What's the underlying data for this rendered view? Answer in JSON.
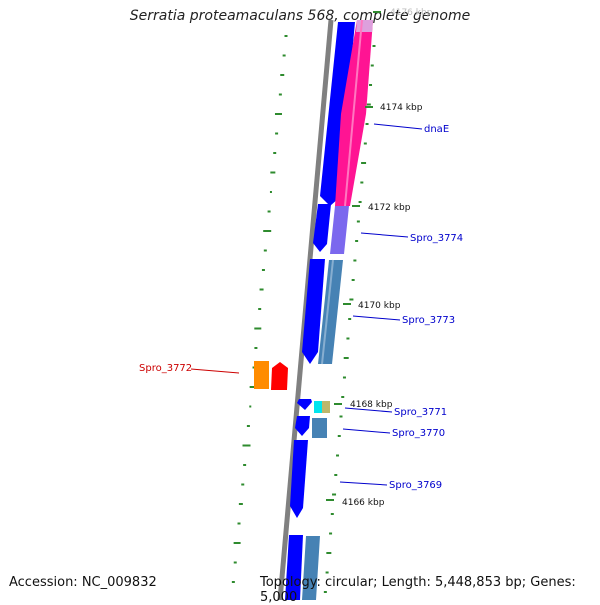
{
  "title": "Serratia proteamaculans 568, complete genome",
  "footer": {
    "accession": "Accession: NC_009832",
    "topology": "Topology: circular; Length: 5,448,853 bp; Genes: 5,000"
  },
  "ruler_labels": [
    "4176 kbp",
    "4174 kbp",
    "4172 kbp",
    "4170 kbp",
    "4168 kbp",
    "4166 kbp"
  ],
  "gene_labels": [
    "dnaE",
    "Spro_3774",
    "Spro_3773",
    "Spro_3772",
    "Spro_3771",
    "Spro_3770",
    "Spro_3769"
  ],
  "colors": {
    "backbone": "#808080",
    "forward_cds": "#0000ff",
    "dnaE": "#ff1493",
    "spro_3774": "#7b68ee",
    "spro_3773": "#4682b4",
    "spro_3772_orange": "#ff8c00",
    "spro_3772_red": "#ff0000",
    "spro_3771_cyan": "#00e5ee",
    "spro_3771_tan": "#bdb76b",
    "label_blue": "#0000cc",
    "label_red": "#cc0000",
    "gc_tick": "#2e8b2e"
  }
}
